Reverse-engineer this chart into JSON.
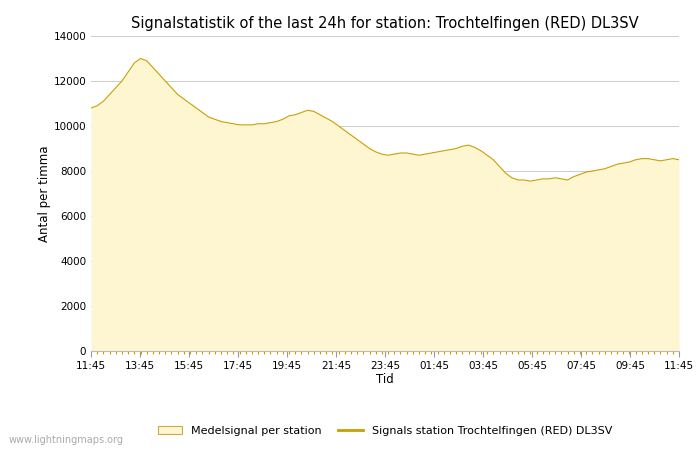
{
  "title": "Signalstatistik of the last 24h for station: Trochtelfingen (RED) DL3SV",
  "xlabel": "Tid",
  "ylabel": "Antal per timma",
  "x_labels": [
    "11:45",
    "13:45",
    "15:45",
    "17:45",
    "19:45",
    "21:45",
    "23:45",
    "01:45",
    "03:45",
    "05:45",
    "07:45",
    "09:45",
    "11:45"
  ],
  "ylim": [
    0,
    14000
  ],
  "yticks": [
    0,
    2000,
    4000,
    6000,
    8000,
    10000,
    12000,
    14000
  ],
  "fill_color": "#FEF6D0",
  "fill_edge_color": "#D4A800",
  "line_color": "#C8A000",
  "background_color": "#ffffff",
  "grid_color": "#cccccc",
  "watermark": "www.lightningmaps.org",
  "legend_fill_label": "Medelsignal per station",
  "legend_line_label": "Signals station Trochtelfingen (RED) DL3SV",
  "x_values": [
    0,
    1,
    2,
    3,
    4,
    5,
    6,
    7,
    8,
    9,
    10,
    11,
    12,
    13,
    14,
    15,
    16,
    17,
    18,
    19,
    20,
    21,
    22,
    23,
    24,
    25,
    26,
    27,
    28,
    29,
    30,
    31,
    32,
    33,
    34,
    35,
    36,
    37,
    38,
    39,
    40,
    41,
    42,
    43,
    44,
    45,
    46,
    47,
    48,
    49,
    50,
    51,
    52,
    53,
    54,
    55,
    56,
    57,
    58,
    59,
    60,
    61,
    62,
    63,
    64,
    65,
    66,
    67,
    68,
    69,
    70,
    71,
    72,
    73,
    74,
    75,
    76,
    77,
    78,
    79,
    80,
    81,
    82,
    83,
    84,
    85,
    86,
    87,
    88,
    89,
    90,
    91,
    92,
    93,
    94,
    95
  ],
  "y_values": [
    10800,
    10900,
    11100,
    11400,
    11700,
    12000,
    12400,
    12800,
    13000,
    12900,
    12600,
    12300,
    12000,
    11700,
    11400,
    11200,
    11000,
    10800,
    10600,
    10400,
    10300,
    10200,
    10150,
    10100,
    10050,
    10050,
    10050,
    10100,
    10100,
    10150,
    10200,
    10300,
    10450,
    10500,
    10600,
    10700,
    10650,
    10500,
    10350,
    10200,
    10000,
    9800,
    9600,
    9400,
    9200,
    9000,
    8850,
    8750,
    8700,
    8750,
    8800,
    8800,
    8750,
    8700,
    8750,
    8800,
    8850,
    8900,
    8950,
    9000,
    9100,
    9150,
    9050,
    8900,
    8700,
    8500,
    8200,
    7900,
    7700,
    7600,
    7600,
    7550,
    7600,
    7650,
    7650,
    7700,
    7650,
    7600,
    7750,
    7850,
    7950,
    8000,
    8050,
    8100,
    8200,
    8300,
    8350,
    8400,
    8500,
    8550,
    8550,
    8500,
    8450,
    8500,
    8550,
    8500
  ]
}
